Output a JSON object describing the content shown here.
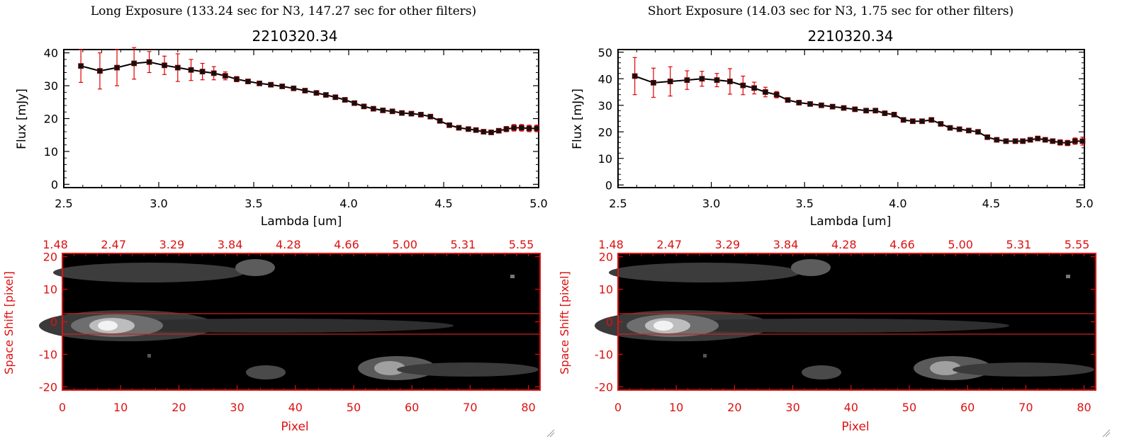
{
  "colors": {
    "axis": "#000000",
    "series": "#000000",
    "marker": "#111111",
    "error": "#e00000",
    "image_axis": "#dd1111",
    "image_bg": "#000000",
    "band": "#cc2222"
  },
  "panels": [
    {
      "heading": "Long Exposure (133.24 sec for N3, 147.27 sec for other filters)",
      "title": "2210320.34",
      "xlabel": "Lambda [um]",
      "ylabel": "Flux [mJy]",
      "x_ticks": [
        "2.5",
        "3.0",
        "3.5",
        "4.0",
        "4.5",
        "5.0"
      ],
      "y_ticks": [
        "0",
        "10",
        "20",
        "30",
        "40"
      ],
      "image": {
        "ylabel": "Space Shift [pixel]",
        "xlabel": "Pixel",
        "bottom_ticks": [
          "0",
          "10",
          "20",
          "30",
          "40",
          "50",
          "60",
          "70",
          "80"
        ],
        "top_ticks": [
          "1.48",
          "2.47",
          "3.29",
          "3.84",
          "4.28",
          "4.66",
          "5.00",
          "5.31",
          "5.55"
        ],
        "y_ticks": [
          "20",
          "10",
          "0",
          "-10",
          "-20"
        ]
      }
    },
    {
      "heading": "Short Exposure (14.03 sec for N3, 1.75 sec for other filters)",
      "title": "2210320.34",
      "xlabel": "Lambda [um]",
      "ylabel": "Flux [mJy]",
      "x_ticks": [
        "2.5",
        "3.0",
        "3.5",
        "4.0",
        "4.5",
        "5.0"
      ],
      "y_ticks": [
        "0",
        "10",
        "20",
        "30",
        "40",
        "50"
      ],
      "image": {
        "ylabel": "Space Shift [pixel]",
        "xlabel": "Pixel",
        "bottom_ticks": [
          "0",
          "10",
          "20",
          "30",
          "40",
          "50",
          "60",
          "70",
          "80"
        ],
        "top_ticks": [
          "1.48",
          "2.47",
          "3.29",
          "3.84",
          "4.28",
          "4.66",
          "5.00",
          "5.31",
          "5.55"
        ],
        "y_ticks": [
          "20",
          "10",
          "0",
          "-10",
          "-20"
        ]
      }
    }
  ],
  "chart_data": [
    {
      "type": "line",
      "title": "2210320.34",
      "xlabel": "Lambda [um]",
      "ylabel": "Flux [mJy]",
      "xlim": [
        2.5,
        5.0
      ],
      "ylim": [
        -1,
        41
      ],
      "x": [
        2.59,
        2.69,
        2.78,
        2.87,
        2.95,
        3.03,
        3.1,
        3.17,
        3.23,
        3.29,
        3.35,
        3.41,
        3.47,
        3.53,
        3.59,
        3.65,
        3.71,
        3.77,
        3.83,
        3.88,
        3.93,
        3.98,
        4.03,
        4.08,
        4.13,
        4.18,
        4.23,
        4.28,
        4.33,
        4.38,
        4.43,
        4.48,
        4.53,
        4.58,
        4.63,
        4.67,
        4.71,
        4.75,
        4.79,
        4.83,
        4.87,
        4.91,
        4.95,
        4.99
      ],
      "y": [
        36,
        34.5,
        35.5,
        36.8,
        37.2,
        36.2,
        35.5,
        34.8,
        34.3,
        33.8,
        33,
        32,
        31.3,
        30.7,
        30.3,
        29.8,
        29.2,
        28.5,
        27.8,
        27.2,
        26.5,
        25.7,
        24.7,
        23.7,
        23,
        22.5,
        22.2,
        21.7,
        21.5,
        21.2,
        20.6,
        19.3,
        18,
        17.2,
        16.8,
        16.5,
        16,
        15.8,
        16.3,
        16.8,
        17.2,
        17.2,
        17,
        17
      ],
      "yerr": [
        5,
        5.5,
        5.5,
        4.8,
        3.2,
        2.8,
        4.2,
        3.2,
        2.5,
        2,
        1.2,
        0.8,
        0.6,
        0.5,
        0.5,
        0.5,
        0.5,
        0.5,
        0.5,
        0.5,
        0.5,
        0.5,
        0.5,
        0.5,
        0.5,
        0.5,
        0.5,
        0.5,
        0.5,
        0.5,
        0.5,
        0.5,
        0.5,
        0.5,
        0.5,
        0.5,
        0.5,
        0.5,
        0.6,
        0.8,
        1,
        1,
        1,
        1
      ]
    },
    {
      "type": "line",
      "title": "2210320.34",
      "xlabel": "Lambda [um]",
      "ylabel": "Flux [mJy]",
      "xlim": [
        2.5,
        5.0
      ],
      "ylim": [
        -1,
        51
      ],
      "x": [
        2.59,
        2.69,
        2.78,
        2.87,
        2.95,
        3.03,
        3.1,
        3.17,
        3.23,
        3.29,
        3.35,
        3.41,
        3.47,
        3.53,
        3.59,
        3.65,
        3.71,
        3.77,
        3.83,
        3.88,
        3.93,
        3.98,
        4.03,
        4.08,
        4.13,
        4.18,
        4.23,
        4.28,
        4.33,
        4.38,
        4.43,
        4.48,
        4.53,
        4.58,
        4.63,
        4.67,
        4.71,
        4.75,
        4.79,
        4.83,
        4.87,
        4.91,
        4.95,
        4.99
      ],
      "y": [
        41,
        38.5,
        39,
        39.5,
        40,
        39.5,
        39,
        37.5,
        36.5,
        35,
        34,
        32,
        31,
        30.5,
        30,
        29.5,
        29,
        28.5,
        28,
        28,
        27,
        26.5,
        24.5,
        24,
        24,
        24.5,
        23,
        21.5,
        21,
        20.5,
        20,
        18,
        17,
        16.5,
        16.5,
        16.5,
        17,
        17.5,
        17,
        16.5,
        16,
        15.8,
        16.5,
        16.5
      ],
      "yerr": [
        7,
        5.5,
        5.5,
        3.5,
        2.8,
        2.5,
        4.8,
        3.5,
        2.2,
        1.8,
        1.2,
        0.8,
        0.6,
        0.5,
        0.5,
        0.5,
        0.5,
        0.5,
        0.5,
        0.5,
        0.5,
        0.5,
        0.5,
        0.5,
        0.5,
        0.5,
        0.5,
        0.5,
        0.5,
        0.5,
        0.5,
        0.5,
        0.5,
        0.5,
        0.5,
        0.5,
        0.5,
        0.6,
        0.6,
        0.8,
        1,
        1,
        1.2,
        1.5
      ]
    }
  ]
}
